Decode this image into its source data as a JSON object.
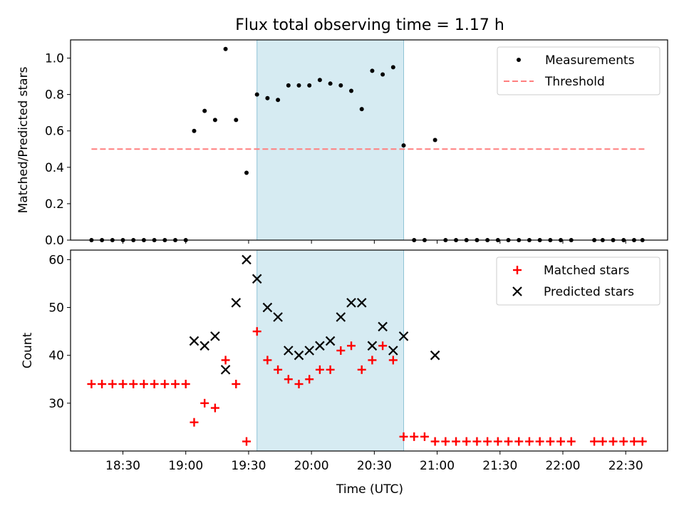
{
  "chart_data": [
    {
      "type": "scatter",
      "title": "Flux total observing time = 1.17 h",
      "xlabel": "",
      "ylabel": "Matched/Predicted stars",
      "ylim": [
        0,
        1.1
      ],
      "yticks": [
        "0.0",
        "0.2",
        "0.4",
        "0.6",
        "0.8",
        "1.0"
      ],
      "highlight_span": [
        "19:34",
        "20:44"
      ],
      "highlight_color": "#add8e6",
      "legend_position": "top-right",
      "threshold": {
        "name": "Threshold",
        "value": 0.5,
        "x_start": "18:15",
        "x_end": "22:40",
        "color": "#ff7f7f",
        "style": "dashed"
      },
      "series": [
        {
          "name": "Measurements",
          "marker": "dot",
          "color": "#000000",
          "x": [
            "18:15",
            "18:20",
            "18:25",
            "18:30",
            "18:35",
            "18:40",
            "18:45",
            "18:50",
            "18:55",
            "19:00",
            "19:04",
            "19:09",
            "19:14",
            "19:19",
            "19:24",
            "19:29",
            "19:34",
            "19:39",
            "19:44",
            "19:49",
            "19:54",
            "19:59",
            "20:04",
            "20:09",
            "20:14",
            "20:19",
            "20:24",
            "20:29",
            "20:34",
            "20:39",
            "20:44",
            "20:49",
            "20:54",
            "20:59",
            "21:04",
            "21:09",
            "21:14",
            "21:19",
            "21:24",
            "21:29",
            "21:34",
            "21:39",
            "21:44",
            "21:49",
            "21:54",
            "21:59",
            "22:04",
            "22:15",
            "22:19",
            "22:24",
            "22:29",
            "22:34",
            "22:38"
          ],
          "y": [
            0,
            0,
            0,
            0,
            0,
            0,
            0,
            0,
            0,
            0,
            0.6,
            0.71,
            0.66,
            1.05,
            0.66,
            0.37,
            0.8,
            0.78,
            0.77,
            0.85,
            0.85,
            0.85,
            0.88,
            0.86,
            0.85,
            0.82,
            0.72,
            0.93,
            0.91,
            0.95,
            0.52,
            0,
            0,
            0.55,
            0,
            0,
            0,
            0,
            0,
            0,
            0,
            0,
            0,
            0,
            0,
            0,
            0,
            0,
            0,
            0,
            0,
            0,
            0
          ]
        }
      ]
    },
    {
      "type": "scatter",
      "xlabel": "Time (UTC)",
      "ylabel": "Count",
      "ylim": [
        20,
        62
      ],
      "yticks": [
        "30",
        "40",
        "50",
        "60"
      ],
      "xticks": [
        "18:30",
        "19:00",
        "19:30",
        "20:00",
        "20:30",
        "21:00",
        "21:30",
        "22:00",
        "22:30"
      ],
      "xlim": [
        "18:05",
        "22:50"
      ],
      "highlight_span": [
        "19:34",
        "20:44"
      ],
      "highlight_color": "#add8e6",
      "legend_position": "top-right",
      "series": [
        {
          "name": "Matched stars",
          "marker": "plus",
          "color": "#ff0000",
          "x": [
            "18:15",
            "18:20",
            "18:25",
            "18:30",
            "18:35",
            "18:40",
            "18:45",
            "18:50",
            "18:55",
            "19:00",
            "19:04",
            "19:09",
            "19:14",
            "19:19",
            "19:24",
            "19:29",
            "19:34",
            "19:39",
            "19:44",
            "19:49",
            "19:54",
            "19:59",
            "20:04",
            "20:09",
            "20:14",
            "20:19",
            "20:24",
            "20:29",
            "20:34",
            "20:39",
            "20:44",
            "20:49",
            "20:54",
            "20:59",
            "21:04",
            "21:09",
            "21:14",
            "21:19",
            "21:24",
            "21:29",
            "21:34",
            "21:39",
            "21:44",
            "21:49",
            "21:54",
            "21:59",
            "22:04",
            "22:15",
            "22:19",
            "22:24",
            "22:29",
            "22:34",
            "22:38"
          ],
          "y": [
            34,
            34,
            34,
            34,
            34,
            34,
            34,
            34,
            34,
            34,
            26,
            30,
            29,
            39,
            34,
            22,
            45,
            39,
            37,
            35,
            34,
            35,
            37,
            37,
            41,
            42,
            37,
            39,
            42,
            39,
            23,
            23,
            23,
            22,
            22,
            22,
            22,
            22,
            22,
            22,
            22,
            22,
            22,
            22,
            22,
            22,
            22,
            22,
            22,
            22,
            22,
            22,
            22
          ]
        },
        {
          "name": "Predicted stars",
          "marker": "x",
          "color": "#000000",
          "x": [
            "19:04",
            "19:09",
            "19:14",
            "19:19",
            "19:24",
            "19:29",
            "19:34",
            "19:39",
            "19:44",
            "19:49",
            "19:54",
            "19:59",
            "20:04",
            "20:09",
            "20:14",
            "20:19",
            "20:24",
            "20:29",
            "20:34",
            "20:39",
            "20:44",
            "20:59"
          ],
          "y": [
            43,
            42,
            44,
            37,
            51,
            60,
            56,
            50,
            48,
            41,
            40,
            41,
            42,
            43,
            48,
            51,
            51,
            42,
            46,
            41,
            44,
            40
          ]
        }
      ]
    }
  ]
}
